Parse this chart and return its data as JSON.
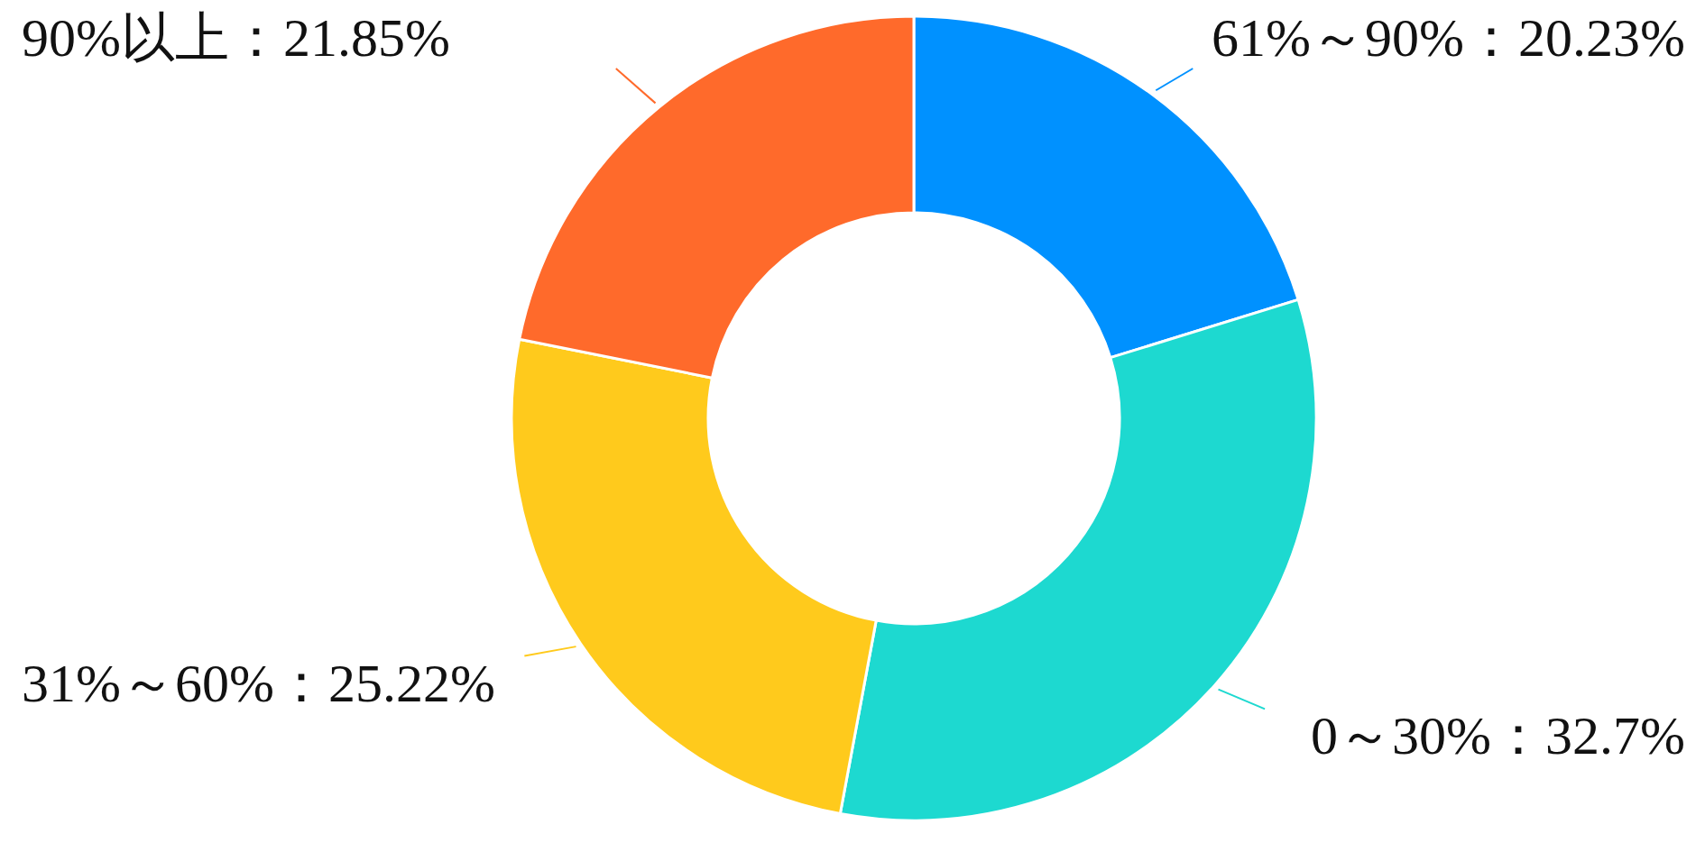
{
  "chart_data": {
    "type": "donut",
    "categories": [
      "61%～90%",
      "0～30%",
      "31%～60%",
      "90%以上"
    ],
    "values": [
      20.23,
      32.7,
      25.22,
      21.85
    ],
    "value_labels": [
      "20.23%",
      "32.7%",
      "25.22%",
      "21.85%"
    ],
    "colors": [
      "#0091ff",
      "#1dd9d0",
      "#ffca1c",
      "#ff6a2b"
    ],
    "legend": false
  }
}
